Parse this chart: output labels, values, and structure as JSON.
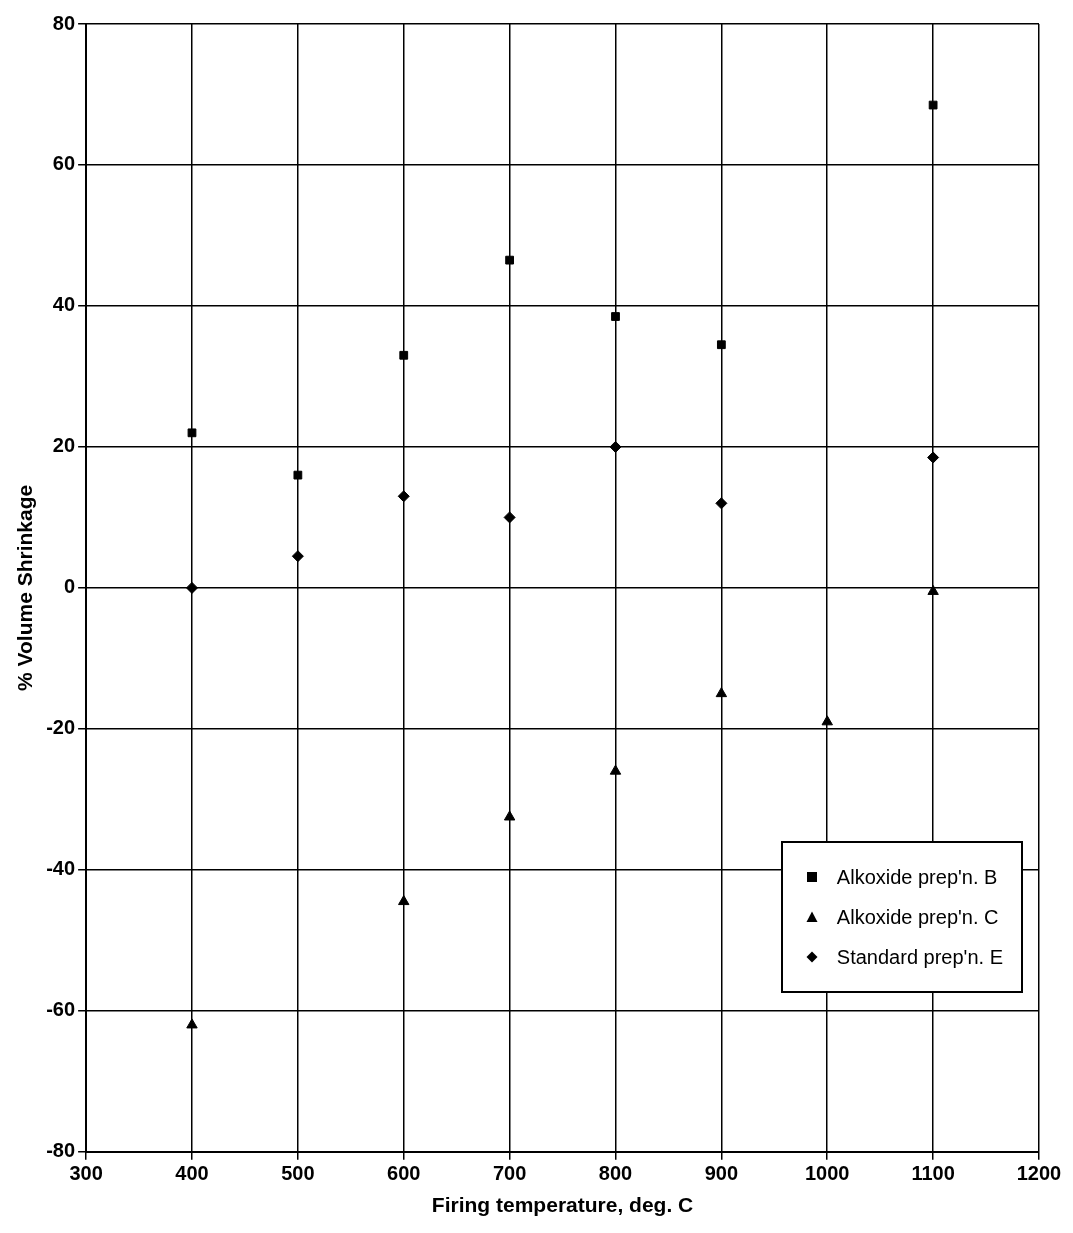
{
  "chart_data": {
    "type": "scatter",
    "xlabel": "Firing temperature, deg. C",
    "ylabel": "% Volume Shrinkage",
    "xlim": [
      300,
      1200
    ],
    "xticks": [
      300,
      400,
      500,
      600,
      700,
      800,
      900,
      1000,
      1100,
      1200
    ],
    "ylim": [
      -80,
      80
    ],
    "yticks": [
      -80,
      -60,
      -40,
      -20,
      0,
      20,
      40,
      60,
      80
    ],
    "grid": true,
    "legend": "bottom right",
    "series": [
      {
        "name": "Alkoxide prep'n. B",
        "color": "#000000",
        "marker": "square",
        "x": [
          400,
          500,
          600,
          700,
          800,
          900,
          1100
        ],
        "values": [
          22,
          16,
          33,
          46.5,
          38.5,
          34.5,
          68.5
        ]
      },
      {
        "name": "Alkoxide prep'n. C",
        "color": "#000000",
        "marker": "triangle",
        "x": [
          400,
          600,
          700,
          800,
          900,
          1000,
          1100
        ],
        "values": [
          -62,
          -44.5,
          -32.5,
          -26,
          -15,
          -19,
          -0.5
        ]
      },
      {
        "name": "Standard prep'n. E",
        "color": "#000000",
        "marker": "diamond",
        "x": [
          400,
          500,
          600,
          700,
          800,
          900,
          1100
        ],
        "values": [
          0,
          4.5,
          13,
          10,
          20,
          12,
          18.5
        ]
      }
    ]
  }
}
